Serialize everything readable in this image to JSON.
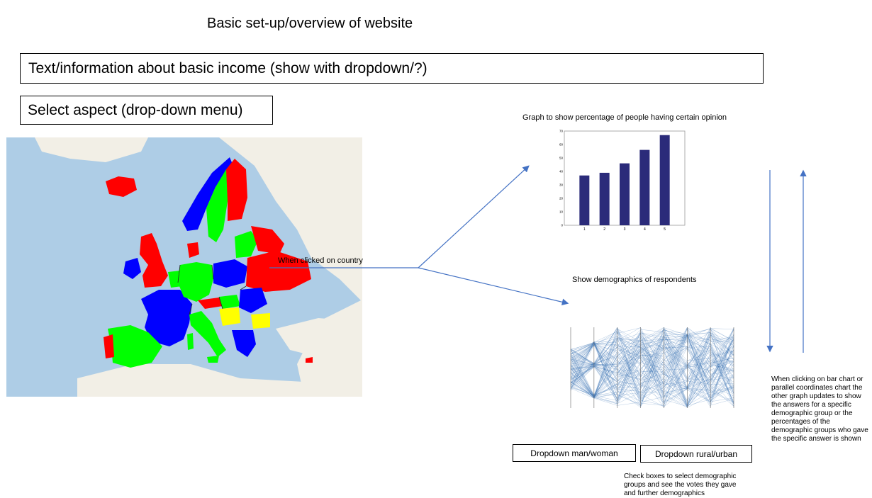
{
  "title": "Basic set-up/overview of website",
  "info_box": "Text/information about basic income (show with dropdown/?)",
  "aspect_box": "Select aspect (drop-down menu)",
  "click_label": "When clicked on country",
  "bar_chart_title": "Graph to show percentage of people having certain opinion",
  "demographics_title": "Show demographics of respondents",
  "dropdown_gender": "Dropdown man/woman",
  "dropdown_area": "Dropdown rural/urban",
  "checkbox_note": "Check boxes to select demographic groups and see the votes they gave and further demographics",
  "interaction_note": "When clicking on bar chart or parallel coordinates chart the other graph updates to show the answers for a specific demographic group or the percentages of the demographic groups who gave the specific answer is shown",
  "colors": {
    "red": "#ff0000",
    "blue": "#0000ff",
    "green": "#00ff00",
    "yellow": "#ffff00",
    "sea": "#aecde6",
    "land": "#f2efe6",
    "bar": "#2b2b7a",
    "arrow": "#4472c4"
  },
  "chart_data": {
    "type": "bar",
    "categories": [
      "1",
      "2",
      "3",
      "4",
      "5"
    ],
    "values": [
      37,
      39,
      46,
      56,
      67
    ],
    "ylim": [
      0,
      70
    ],
    "yticks": [
      0,
      10,
      20,
      30,
      40,
      50,
      60,
      70
    ]
  }
}
